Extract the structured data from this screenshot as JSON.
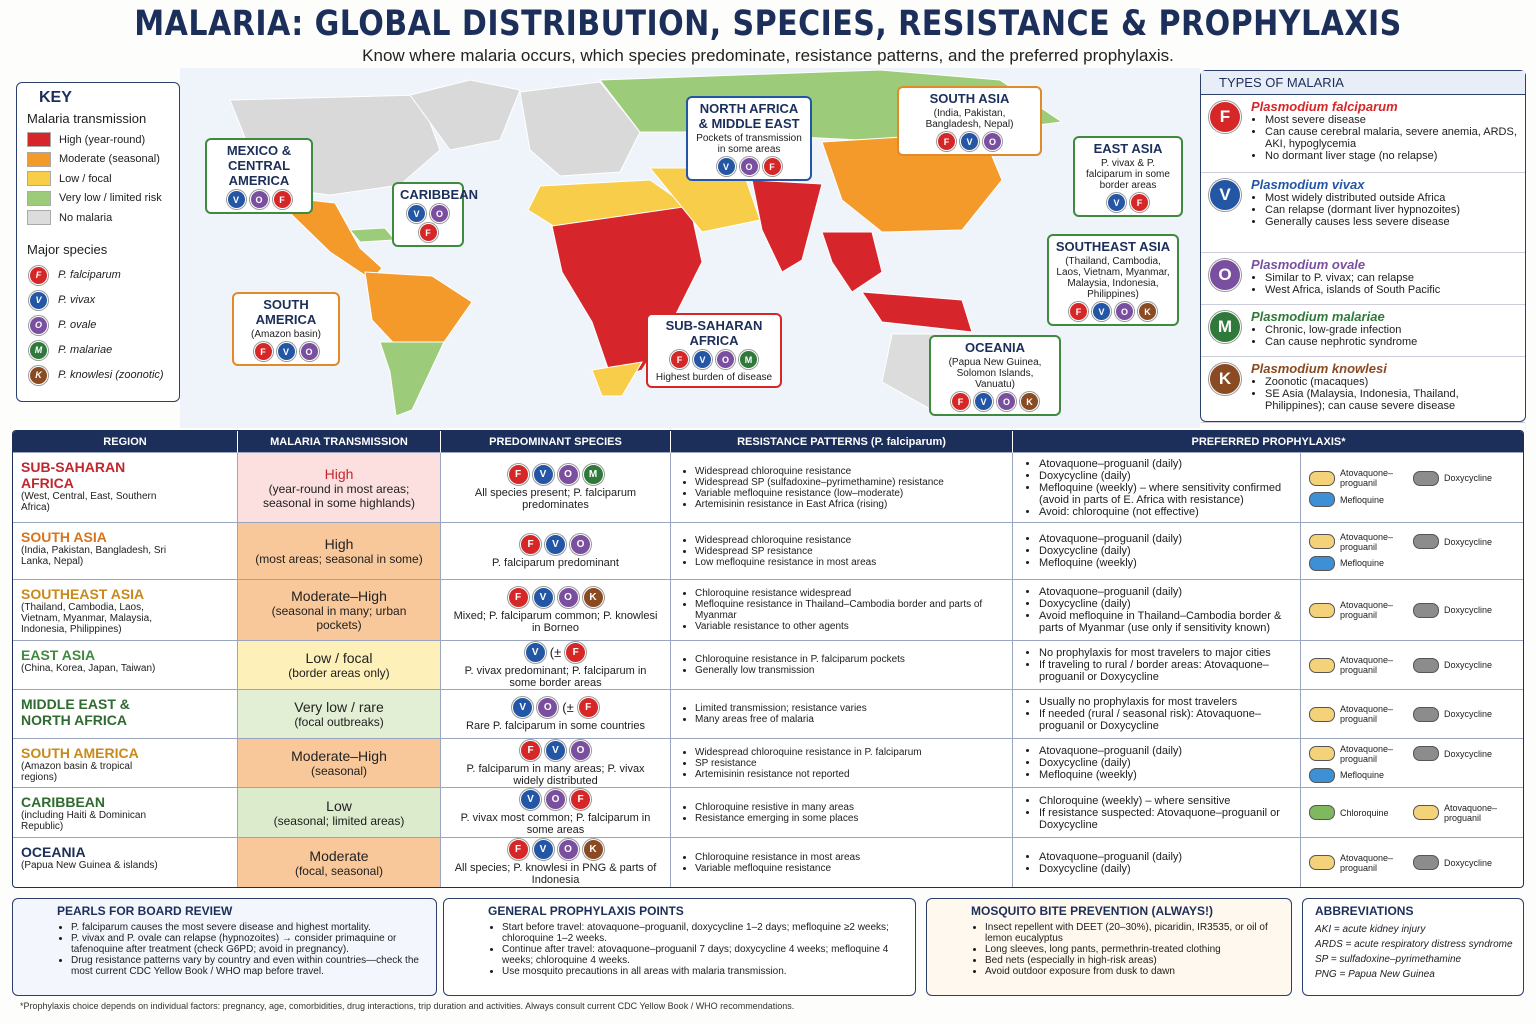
{
  "header": {
    "title": "MALARIA: GLOBAL DISTRIBUTION, SPECIES, RESISTANCE & PROPHYLAXIS",
    "subtitle": "Know where malaria occurs, which species predominate, resistance patterns, and the preferred prophylaxis."
  },
  "key": {
    "title": "KEY",
    "transmission_title": "Malaria transmission",
    "levels": [
      {
        "label": "High (year-round)",
        "color": "#d7262b"
      },
      {
        "label": "Moderate (seasonal)",
        "color": "#f39a2b"
      },
      {
        "label": "Low / focal",
        "color": "#f8cd4a"
      },
      {
        "label": "Very low / limited risk",
        "color": "#9ccb7a"
      },
      {
        "label": "No malaria",
        "color": "#dcdcdc"
      }
    ],
    "species_title": "Major species",
    "species": [
      {
        "letter": "F",
        "label": "P. falciparum",
        "color": "#d62728"
      },
      {
        "letter": "V",
        "label": "P. vivax",
        "color": "#2456a6"
      },
      {
        "letter": "O",
        "label": "P. ovale",
        "color": "#7a4fa0"
      },
      {
        "letter": "M",
        "label": "P. malariae",
        "color": "#2f7a3a"
      },
      {
        "letter": "K",
        "label": "P. knowlesi (zoonotic)",
        "color": "#8a4a22"
      }
    ]
  },
  "map": {
    "callouts": [
      {
        "title": "MEXICO & CENTRAL AMERICA",
        "species": [
          "V",
          "O",
          "F"
        ],
        "color": "#3f8a3f"
      },
      {
        "title": "CARIBBEAN",
        "species": [
          "V",
          "O",
          "F"
        ],
        "color": "#3f8a3f"
      },
      {
        "title": "SOUTH AMERICA",
        "subtitle": "(Amazon basin)",
        "species": [
          "F",
          "V",
          "O"
        ],
        "color": "#e08a2a"
      },
      {
        "title": "NORTH AFRICA & MIDDLE EAST",
        "subtitle": "Pockets of transmission in some areas",
        "species": [
          "V",
          "O",
          "F"
        ],
        "color": "#2456a6"
      },
      {
        "title": "SOUTH ASIA",
        "subtitle": "(India, Pakistan, Bangladesh, Nepal)",
        "species": [
          "F",
          "V",
          "O"
        ],
        "color": "#e08a2a"
      },
      {
        "title": "EAST ASIA",
        "subtitle": "P. vivax & P. falciparum in some border areas",
        "species": [
          "V",
          "F"
        ],
        "color": "#3f8a3f"
      },
      {
        "title": "SOUTHEAST ASIA",
        "subtitle": "(Thailand, Cambodia, Laos, Vietnam, Myanmar, Malaysia, Indonesia, Philippines)",
        "species": [
          "F",
          "V",
          "O",
          "K"
        ],
        "color": "#3f8a3f"
      },
      {
        "title": "SUB-SAHARAN AFRICA",
        "species": [
          "F",
          "V",
          "O",
          "M"
        ],
        "note": "Highest burden of disease",
        "color": "#d62728"
      },
      {
        "title": "OCEANIA",
        "subtitle": "(Papua New Guinea, Solomon Islands, Vanuatu)",
        "species": [
          "F",
          "V",
          "O",
          "K"
        ],
        "color": "#3f8a3f"
      }
    ]
  },
  "types": {
    "title": "TYPES OF MALARIA",
    "items": [
      {
        "letter": "F",
        "name": "Plasmodium falciparum",
        "bullets": [
          "Most severe disease",
          "Can cause cerebral malaria, severe anemia, ARDS, AKI, hypoglycemia",
          "No dormant liver stage (no relapse)"
        ]
      },
      {
        "letter": "V",
        "name": "Plasmodium vivax",
        "bullets": [
          "Most widely distributed outside Africa",
          "Can relapse (dormant liver hypnozoites)",
          "Generally causes less severe disease"
        ]
      },
      {
        "letter": "O",
        "name": "Plasmodium ovale",
        "bullets": [
          "Similar to P. vivax; can relapse",
          "West Africa, islands of South Pacific"
        ]
      },
      {
        "letter": "M",
        "name": "Plasmodium malariae",
        "bullets": [
          "Chronic, low-grade infection",
          "Can cause nephrotic syndrome"
        ]
      },
      {
        "letter": "K",
        "name": "Plasmodium knowlesi",
        "bullets": [
          "Zoonotic (macaques)",
          "SE Asia (Malaysia, Indonesia, Thailand, Philippines); can cause severe disease"
        ]
      }
    ]
  },
  "table": {
    "headers": [
      "REGION",
      "MALARIA TRANSMISSION",
      "PREDOMINANT SPECIES",
      "RESISTANCE PATTERNS (P. falciparum)",
      "PREFERRED PROPHYLAXIS*"
    ],
    "rows": [
      {
        "region": "SUB-SAHARAN AFRICA",
        "region_sub": "(West, Central, East, Southern Africa)",
        "title_color": "#c0272d",
        "transmission": "High",
        "transmission_sub": "(year-round in most areas; seasonal in some highlands)",
        "color": "#fbe0df",
        "species": [
          "F",
          "V",
          "O",
          "M"
        ],
        "species_note": "All species present; P. falciparum predominates",
        "resistance": [
          "Widespread chloroquine resistance",
          "Widespread SP (sulfadoxine–pyrimethamine) resistance",
          "Variable mefloquine resistance (low–moderate)",
          "Artemisinin resistance in East Africa (rising)"
        ],
        "prophylaxis": [
          "Atovaquone–proguanil (daily)",
          "Doxycycline (daily)",
          "Mefloquine (weekly) – where sensitivity confirmed (avoid in parts of E. Africa with resistance)",
          "Avoid: chloroquine (not effective)"
        ],
        "pills": [
          {
            "label": "Atovaquone–proguanil",
            "color": "#f3d27a"
          },
          {
            "label": "Doxycycline",
            "color": "#8c8c8c"
          },
          {
            "label": "Mefloquine",
            "color": "#3d8fd6"
          }
        ]
      },
      {
        "region": "SOUTH ASIA",
        "region_sub": "(India, Pakistan, Bangladesh, Sri Lanka, Nepal)",
        "title_color": "#d9741c",
        "transmission": "High",
        "transmission_sub": "(most areas; seasonal in some)",
        "color": "#f9c89a",
        "species": [
          "F",
          "V",
          "O"
        ],
        "species_note": "P. falciparum predominant",
        "resistance": [
          "Widespread chloroquine resistance",
          "Widespread SP resistance",
          "Low mefloquine resistance in most areas"
        ],
        "prophylaxis": [
          "Atovaquone–proguanil (daily)",
          "Doxycycline (daily)",
          "Mefloquine (weekly)"
        ],
        "pills": [
          {
            "label": "Atovaquone–proguanil",
            "color": "#f3d27a"
          },
          {
            "label": "Doxycycline",
            "color": "#8c8c8c"
          },
          {
            "label": "Mefloquine",
            "color": "#3d8fd6"
          }
        ]
      },
      {
        "region": "SOUTHEAST ASIA",
        "region_sub": "(Thailand, Cambodia, Laos, Vietnam, Myanmar, Malaysia, Indonesia, Philippines)",
        "title_color": "#c98a1a",
        "transmission": "Moderate–High",
        "transmission_sub": "(seasonal in many; urban pockets)",
        "color": "#f9c89a",
        "species": [
          "F",
          "V",
          "O",
          "K"
        ],
        "species_note": "Mixed; P. falciparum common; P. knowlesi in Borneo",
        "resistance": [
          "Chloroquine resistance widespread",
          "Mefloquine resistance in Thailand–Cambodia border and parts of Myanmar",
          "Variable resistance to other agents"
        ],
        "prophylaxis": [
          "Atovaquone–proguanil (daily)",
          "Doxycycline (daily)",
          "Avoid mefloquine in Thailand–Cambodia border & parts of Myanmar (use only if sensitivity known)"
        ],
        "pills": [
          {
            "label": "Atovaquone–proguanil",
            "color": "#f3d27a"
          },
          {
            "label": "Doxycycline",
            "color": "#8c8c8c"
          }
        ]
      },
      {
        "region": "EAST ASIA",
        "region_sub": "(China, Korea, Japan, Taiwan)",
        "title_color": "#3f8a3f",
        "transmission": "Low / focal",
        "transmission_sub": "(border areas only)",
        "color": "#fdf0b8",
        "species": [
          "V",
          "(±",
          "F"
        ],
        "species_note": "P. vivax predominant; P. falciparum in some border areas",
        "resistance": [
          "Chloroquine resistance in P. falciparum pockets",
          "Generally low transmission"
        ],
        "prophylaxis": [
          "No prophylaxis for most travelers to major cities",
          "If traveling to rural / border areas: Atovaquone–proguanil or Doxycycline"
        ],
        "pills": [
          {
            "label": "Atovaquone–proguanil",
            "color": "#f3d27a"
          },
          {
            "label": "Doxycycline",
            "color": "#8c8c8c"
          }
        ]
      },
      {
        "region": "MIDDLE EAST & NORTH AFRICA",
        "title_color": "#2f6b2f",
        "transmission": "Very low / rare",
        "transmission_sub": "(focal outbreaks)",
        "color": "#e3efd5",
        "species": [
          "V",
          "O",
          "(±",
          "F"
        ],
        "species_note": "Rare P. falciparum in some countries",
        "resistance": [
          "Limited transmission; resistance varies",
          "Many areas free of malaria"
        ],
        "prophylaxis": [
          "Usually no prophylaxis for most travelers",
          "If needed (rural / seasonal risk): Atovaquone–proguanil or Doxycycline"
        ],
        "pills": [
          {
            "label": "Atovaquone–proguanil",
            "color": "#f3d27a"
          },
          {
            "label": "Doxycycline",
            "color": "#8c8c8c"
          }
        ]
      },
      {
        "region": "SOUTH AMERICA",
        "region_sub": "(Amazon basin & tropical regions)",
        "title_color": "#c98a1a",
        "transmission": "Moderate–High",
        "transmission_sub": "(seasonal)",
        "color": "#f9c89a",
        "species": [
          "F",
          "V",
          "O"
        ],
        "species_note": "P. falciparum in many areas; P. vivax widely distributed",
        "resistance": [
          "Widespread chloroquine resistance in P. falciparum",
          "SP resistance",
          "Artemisinin resistance not reported"
        ],
        "prophylaxis": [
          "Atovaquone–proguanil (daily)",
          "Doxycycline (daily)",
          "Mefloquine (weekly)"
        ],
        "pills": [
          {
            "label": "Atovaquone–proguanil",
            "color": "#f3d27a"
          },
          {
            "label": "Doxycycline",
            "color": "#8c8c8c"
          },
          {
            "label": "Mefloquine",
            "color": "#3d8fd6"
          }
        ]
      },
      {
        "region": "CARIBBEAN",
        "region_sub": "(including Haiti & Dominican Republic)",
        "title_color": "#2f6b2f",
        "transmission": "Low",
        "transmission_sub": "(seasonal; limited areas)",
        "color": "#dcebcb",
        "species": [
          "V",
          "O",
          "F"
        ],
        "species_note": "P. vivax most common; P. falciparum in some areas",
        "resistance": [
          "Chloroquine resistive in many areas",
          "Resistance emerging in some places"
        ],
        "prophylaxis": [
          "Chloroquine (weekly) – where sensitive",
          "If resistance suspected: Atovaquone–proguanil or Doxycycline"
        ],
        "pills": [
          {
            "label": "Chloroquine",
            "color": "#7fb85e"
          },
          {
            "label": "Atovaquone–proguanil",
            "color": "#f3d27a"
          }
        ]
      },
      {
        "region": "OCEANIA",
        "region_sub": "(Papua New Guinea & islands)",
        "title_color": "#1c2f5a",
        "transmission": "Moderate",
        "transmission_sub": "(focal, seasonal)",
        "color": "#f9c89a",
        "species": [
          "F",
          "V",
          "O",
          "K"
        ],
        "species_note": "All species; P. knowlesi in PNG & parts of Indonesia",
        "resistance": [
          "Chloroquine resistance in most areas",
          "Variable mefloquine resistance"
        ],
        "prophylaxis": [
          "Atovaquone–proguanil (daily)",
          "Doxycycline (daily)"
        ],
        "pills": [
          {
            "label": "Atovaquone–proguanil",
            "color": "#f3d27a"
          },
          {
            "label": "Doxycycline",
            "color": "#8c8c8c"
          }
        ]
      }
    ]
  },
  "boxes": [
    {
      "title": "PEARLS FOR BOARD REVIEW",
      "bullets": [
        "P. falciparum causes the most severe disease and highest mortality.",
        "P. vivax and P. ovale can relapse (hypnozoites) → consider primaquine or tafenoquine after treatment (check G6PD; avoid in pregnancy).",
        "Drug resistance patterns vary by country and even within countries—check the most current CDC Yellow Book / WHO map before travel."
      ]
    },
    {
      "title": "GENERAL PROPHYLAXIS POINTS",
      "bullets": [
        "Start before travel: atovaquone–proguanil, doxycycline 1–2 days; mefloquine ≥2 weeks; chloroquine 1–2 weeks.",
        "Continue after travel: atovaquone–proguanil 7 days; doxycycline 4 weeks; mefloquine 4 weeks; chloroquine 4 weeks.",
        "Use mosquito precautions in all areas with malaria transmission."
      ]
    },
    {
      "title": "MOSQUITO BITE PREVENTION (ALWAYS!)",
      "bullets": [
        "Insect repellent with DEET (20–30%), picaridin, IR3535, or oil of lemon eucalyptus",
        "Long sleeves, long pants, permethrin-treated clothing",
        "Bed nets (especially in high-risk areas)",
        "Avoid outdoor exposure from dusk to dawn"
      ]
    },
    {
      "title": "ABBREVIATIONS",
      "bullets": [
        "AKI = acute kidney injury",
        "ARDS = acute respiratory distress syndrome",
        "SP = sulfadoxine–pyrimethamine",
        "PNG = Papua New Guinea"
      ]
    }
  ],
  "footnote": "*Prophylaxis choice depends on individual factors: pregnancy, age, comorbidities, drug interactions, trip duration and activities. Always consult current CDC Yellow Book / WHO recommendations."
}
